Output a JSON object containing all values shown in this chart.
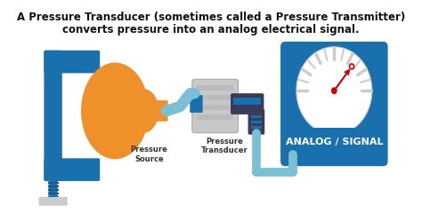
{
  "title_line1": "A Pressure Transducer (sometimes called a Pressure Transmitter)",
  "title_line2": "converts pressure into an analog electrical signal.",
  "title_fontsize": 8.5,
  "bg_color": "#ffffff",
  "blue_color": "#1a6fad",
  "light_blue": "#7bbfd4",
  "orange_color": "#f0902a",
  "gray_color": "#aaaaaa",
  "light_gray": "#cccccc",
  "dark_gray": "#666666",
  "white": "#ffffff",
  "red_color": "#cc0000",
  "text_color": "#111111",
  "label_pressure_source": "Pressure\nSource",
  "label_transducer": "Pressure\nTransducer",
  "label_analog": "ANALOG / SIGNAL"
}
